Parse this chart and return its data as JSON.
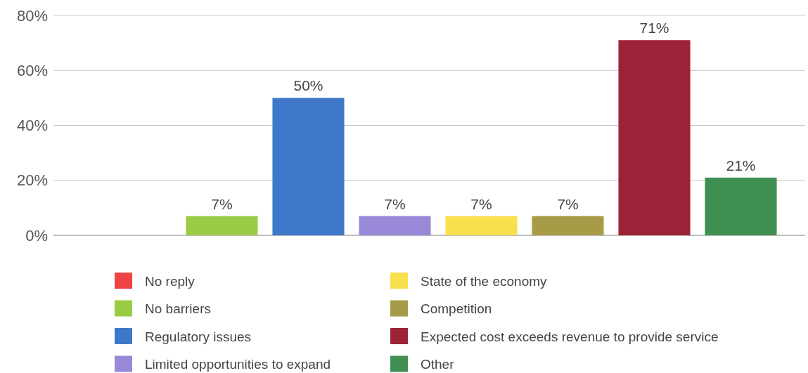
{
  "chart_data": {
    "type": "bar",
    "categories": [
      null,
      null,
      null,
      null,
      null,
      null,
      null,
      null
    ],
    "ylim": [
      0,
      80
    ],
    "yticks": [
      {
        "value": 0,
        "label": "0%"
      },
      {
        "value": 20,
        "label": "20%"
      },
      {
        "value": 40,
        "label": "40%"
      },
      {
        "value": 60,
        "label": "60%"
      },
      {
        "value": 80,
        "label": "80%"
      }
    ],
    "grid": "y",
    "legend": "bottom",
    "series": [
      {
        "name": "No reply",
        "color": "#ee4444",
        "values": [
          0,
          null,
          null,
          null,
          null,
          null,
          null,
          null
        ],
        "value_labels": [
          null,
          null,
          null,
          null,
          null,
          null,
          null,
          null
        ]
      },
      {
        "name": "No barriers",
        "color": "#99cc44",
        "values": [
          null,
          7,
          null,
          null,
          null,
          null,
          null,
          null
        ],
        "value_labels": [
          null,
          "7%",
          null,
          null,
          null,
          null,
          null,
          null
        ]
      },
      {
        "name": "Regulatory issues",
        "color": "#3e78c8",
        "values": [
          null,
          null,
          50,
          null,
          null,
          null,
          null,
          null
        ],
        "value_labels": [
          null,
          null,
          "50%",
          null,
          null,
          null,
          null,
          null
        ]
      },
      {
        "name": "Limited opportunities to expand",
        "color": "#9988d8",
        "values": [
          null,
          null,
          null,
          7,
          null,
          null,
          null,
          null
        ],
        "value_labels": [
          null,
          null,
          null,
          "7%",
          null,
          null,
          null,
          null
        ]
      },
      {
        "name": "State of the economy",
        "color": "#f8e04c",
        "values": [
          null,
          null,
          null,
          null,
          7,
          null,
          null,
          null
        ],
        "value_labels": [
          null,
          null,
          null,
          null,
          "7%",
          null,
          null,
          null
        ]
      },
      {
        "name": "Competition",
        "color": "#a69c48",
        "values": [
          null,
          null,
          null,
          null,
          null,
          7,
          null,
          null
        ],
        "value_labels": [
          null,
          null,
          null,
          null,
          null,
          "7%",
          null,
          null
        ]
      },
      {
        "name": "Expected cost exceeds revenue to provide service",
        "color": "#9c2238",
        "values": [
          null,
          null,
          null,
          null,
          null,
          null,
          71,
          null
        ],
        "value_labels": [
          null,
          null,
          null,
          null,
          null,
          null,
          "71%",
          null
        ]
      },
      {
        "name": "Other",
        "color": "#3f8f52",
        "values": [
          null,
          null,
          null,
          null,
          null,
          null,
          null,
          21
        ],
        "value_labels": [
          null,
          null,
          null,
          null,
          null,
          null,
          null,
          "21%"
        ]
      }
    ]
  }
}
